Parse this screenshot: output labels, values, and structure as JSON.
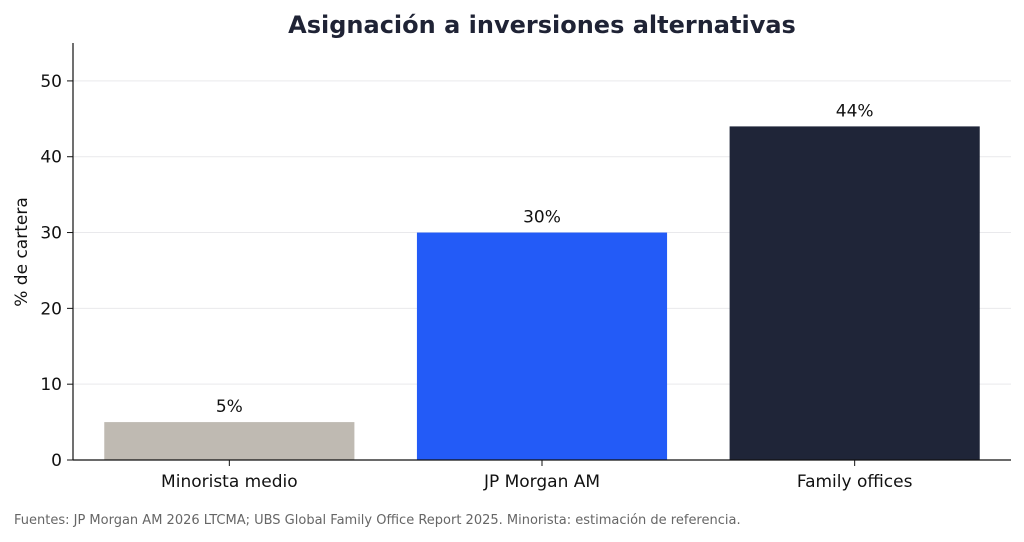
{
  "chart_data": {
    "type": "bar",
    "title": "Asignación a inversiones alternativas",
    "ylabel": "% de cartera",
    "xlabel": "",
    "categories": [
      "Minorista medio",
      "JP Morgan AM",
      "Family offices"
    ],
    "values": [
      5,
      30,
      44
    ],
    "value_labels": [
      "5%",
      "30%",
      "44%"
    ],
    "colors": [
      "#bfbab2",
      "#235bf7",
      "#1f2538"
    ],
    "ylim": [
      0,
      55
    ],
    "yticks": [
      0,
      10,
      20,
      30,
      40,
      50
    ],
    "grid": true
  },
  "source_note": "Fuentes: JP Morgan AM 2026 LTCMA; UBS Global Family Office Report 2025. Minorista: estimación de referencia."
}
